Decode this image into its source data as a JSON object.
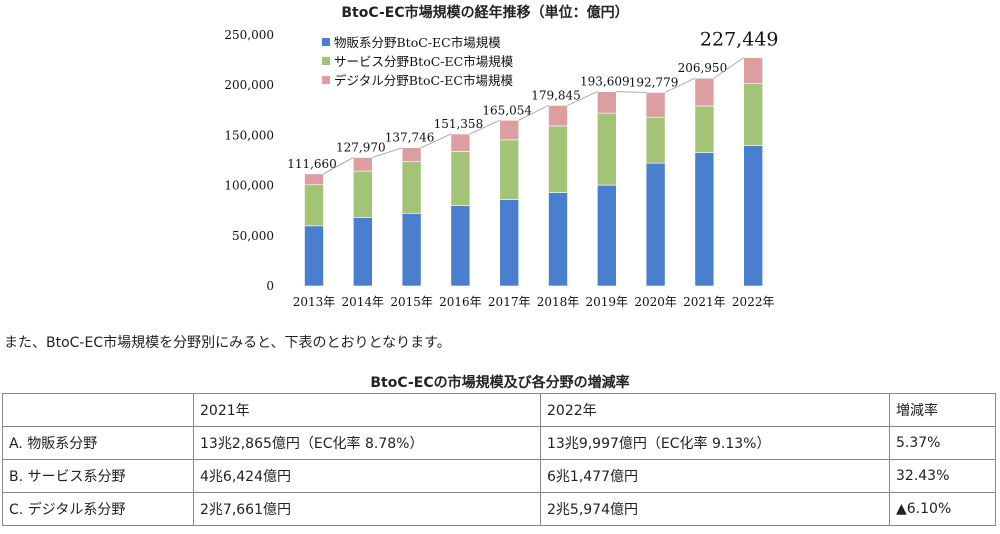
{
  "chart_data": {
    "type": "bar",
    "stacked": true,
    "title": "BtoC-EC市場規模の経年推移（単位：億円）",
    "categories": [
      "2013年",
      "2014年",
      "2015年",
      "2016年",
      "2017年",
      "2018年",
      "2019年",
      "2020年",
      "2021年",
      "2022年"
    ],
    "series": [
      {
        "name": "物販系分野BtoC-EC市場規模",
        "color": "#4a7fd0",
        "values": [
          59931,
          68043,
          72398,
          80043,
          86008,
          92992,
          100515,
          122333,
          132865,
          139997
        ]
      },
      {
        "name": "サービス分野BtoC-EC市場規模",
        "color": "#a3c477",
        "values": [
          40917,
          46440,
          51429,
          54044,
          59568,
          66471,
          71672,
          45832,
          46424,
          61477
        ]
      },
      {
        "name": "デジタル分野BtoC-EC市場規模",
        "color": "#dc9ea0",
        "values": [
          10812,
          13487,
          13919,
          17271,
          19478,
          20382,
          21422,
          24614,
          27661,
          25974
        ]
      }
    ],
    "totals": [
      "111,660",
      "127,970",
      "137,746",
      "151,358",
      "165,054",
      "179,845",
      "193,609",
      "192,779",
      "206,950",
      "227,449"
    ],
    "ylim": [
      0,
      250000
    ],
    "yticks": [
      "0",
      "50,000",
      "100,000",
      "150,000",
      "200,000",
      "250,000"
    ],
    "ytick_values": [
      0,
      50000,
      100000,
      150000,
      200000,
      250000
    ],
    "xlabel": "",
    "ylabel": "",
    "legend_position": "top-left"
  },
  "intro_text": "また、BtoC-EC市場規模を分野別にみると、下表のとおりとなります。",
  "table": {
    "title": "BtoC-ECの市場規模及び各分野の増減率",
    "header": [
      "",
      "2021年",
      "2022年",
      "増減率"
    ],
    "rows": [
      [
        "A. 物販系分野",
        "13兆2,865億円（EC化率 8.78%）",
        "13兆9,997億円（EC化率 9.13%）",
        "5.37%"
      ],
      [
        "B. サービス系分野",
        "4兆6,424億円",
        "6兆1,477億円",
        "32.43%"
      ],
      [
        "C. デジタル系分野",
        "2兆7,661億円",
        "2兆5,974億円",
        "▲6.10%"
      ]
    ]
  }
}
